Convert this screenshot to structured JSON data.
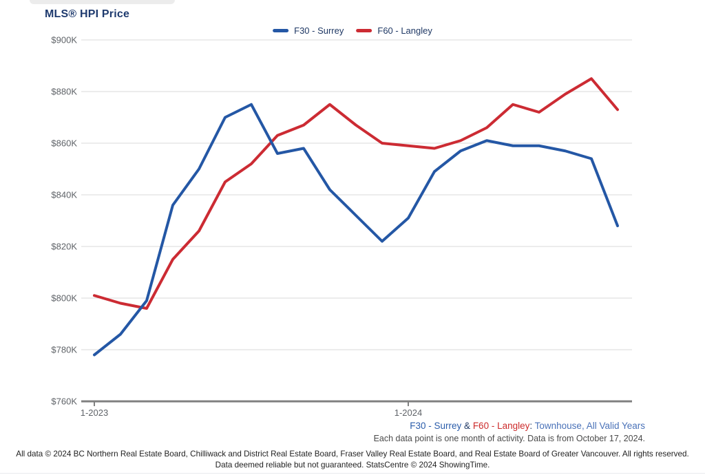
{
  "page": {
    "title": "MLS® HPI Price"
  },
  "chart_data": {
    "type": "line",
    "title": "MLS® HPI Price",
    "x": [
      "1-2023",
      "2-2023",
      "3-2023",
      "4-2023",
      "5-2023",
      "6-2023",
      "7-2023",
      "8-2023",
      "9-2023",
      "10-2023",
      "11-2023",
      "12-2023",
      "1-2024",
      "2-2024",
      "3-2024",
      "4-2024",
      "5-2024",
      "6-2024",
      "7-2024",
      "8-2024",
      "9-2024"
    ],
    "series": [
      {
        "name": "F30 - Surrey",
        "color": "#2457A5",
        "values": [
          778,
          786,
          799,
          836,
          850,
          870,
          875,
          856,
          858,
          842,
          832,
          822,
          831,
          849,
          857,
          861,
          859,
          859,
          857,
          854,
          828
        ]
      },
      {
        "name": "F60 - Langley",
        "color": "#CC2B33",
        "values": [
          801,
          798,
          796,
          815,
          826,
          845,
          852,
          863,
          867,
          875,
          867,
          860,
          859,
          858,
          861,
          866,
          875,
          872,
          879,
          885,
          873
        ]
      }
    ],
    "ylim": [
      760,
      900
    ],
    "y_ticks": [
      {
        "value": 900,
        "label": "$900K"
      },
      {
        "value": 880,
        "label": "$880K"
      },
      {
        "value": 860,
        "label": "$860K"
      },
      {
        "value": 840,
        "label": "$840K"
      },
      {
        "value": 820,
        "label": "$820K"
      },
      {
        "value": 800,
        "label": "$800K"
      },
      {
        "value": 780,
        "label": "$780K"
      },
      {
        "value": 760,
        "label": "$760K"
      }
    ],
    "x_ticks": [
      {
        "index": 0,
        "label": "1-2023"
      },
      {
        "index": 12,
        "label": "1-2024"
      }
    ],
    "grid": true,
    "legend_position": "top"
  },
  "legend": {
    "items": [
      {
        "label": "F30 - Surrey",
        "color": "#2457A5"
      },
      {
        "label": "F60 - Langley",
        "color": "#CC2B33"
      }
    ]
  },
  "annotation": {
    "series_blue": "F30 - Surrey",
    "ampersand": " & ",
    "series_red": "F60 - Langley",
    "colon": ": ",
    "subject": "Townhouse, All Valid Years",
    "note": "Each data point is one month of activity. Data is from October 17, 2024."
  },
  "footer": {
    "line1": "All data © 2024 BC Northern Real Estate Board, Chilliwack and District Real Estate Board, Fraser Valley Real Estate Board, and Real Estate Board of Greater Vancouver. All rights reserved.",
    "line2": "Data deemed reliable but not guaranteed. StatsCentre © 2024 ShowingTime."
  },
  "colors": {
    "title": "#1e3a6e",
    "legend_text": "#1f3864",
    "axis_label": "#5f6368",
    "gridline": "#d9d9d9",
    "axis_line": "#808080"
  }
}
